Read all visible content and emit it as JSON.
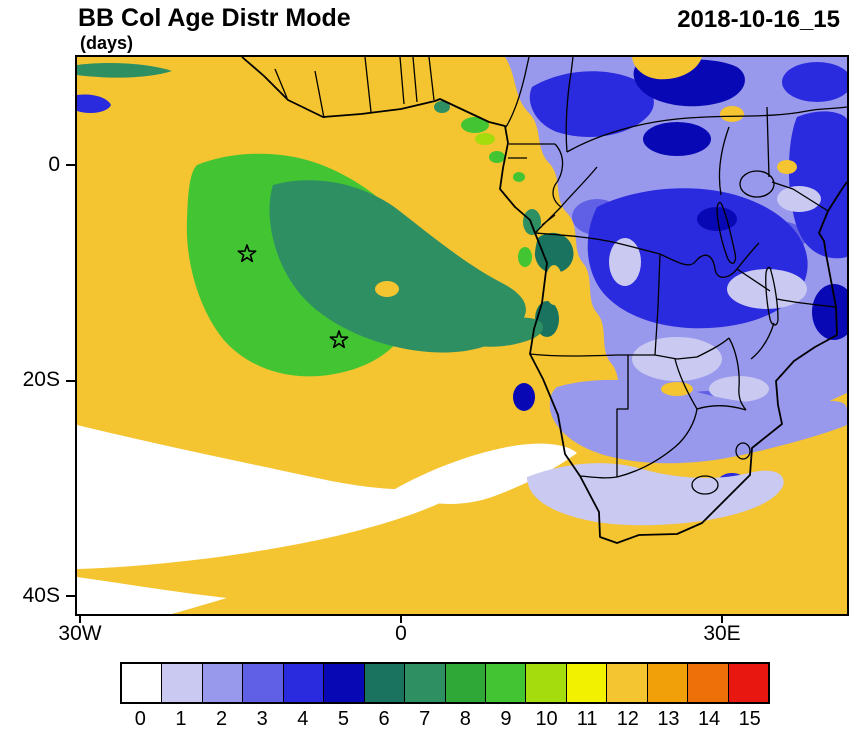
{
  "header": {
    "title": "BB Col Age Distr Mode",
    "subtitle": "(days)",
    "date": "2018-10-16_15"
  },
  "axes": {
    "y_ticks": [
      "0",
      "20S",
      "40S"
    ],
    "x_ticks": [
      "30W",
      "0",
      "30E"
    ]
  },
  "colorbar": {
    "values": [
      "0",
      "1",
      "2",
      "3",
      "4",
      "5",
      "6",
      "7",
      "8",
      "9",
      "10",
      "11",
      "12",
      "13",
      "14",
      "15"
    ],
    "colors": [
      "#FFFFFF",
      "#C9C9F2",
      "#9898EC",
      "#6060E6",
      "#2A2ADF",
      "#0808B4",
      "#19735F",
      "#2E8F63",
      "#2FA838",
      "#42C433",
      "#A4DC0E",
      "#F2F200",
      "#F4C431",
      "#F2A009",
      "#EE7008",
      "#E81810"
    ]
  },
  "markers": [
    {
      "x": 170,
      "y": 197
    },
    {
      "x": 262,
      "y": 283
    }
  ],
  "map": {
    "outline_color": "#000000"
  }
}
